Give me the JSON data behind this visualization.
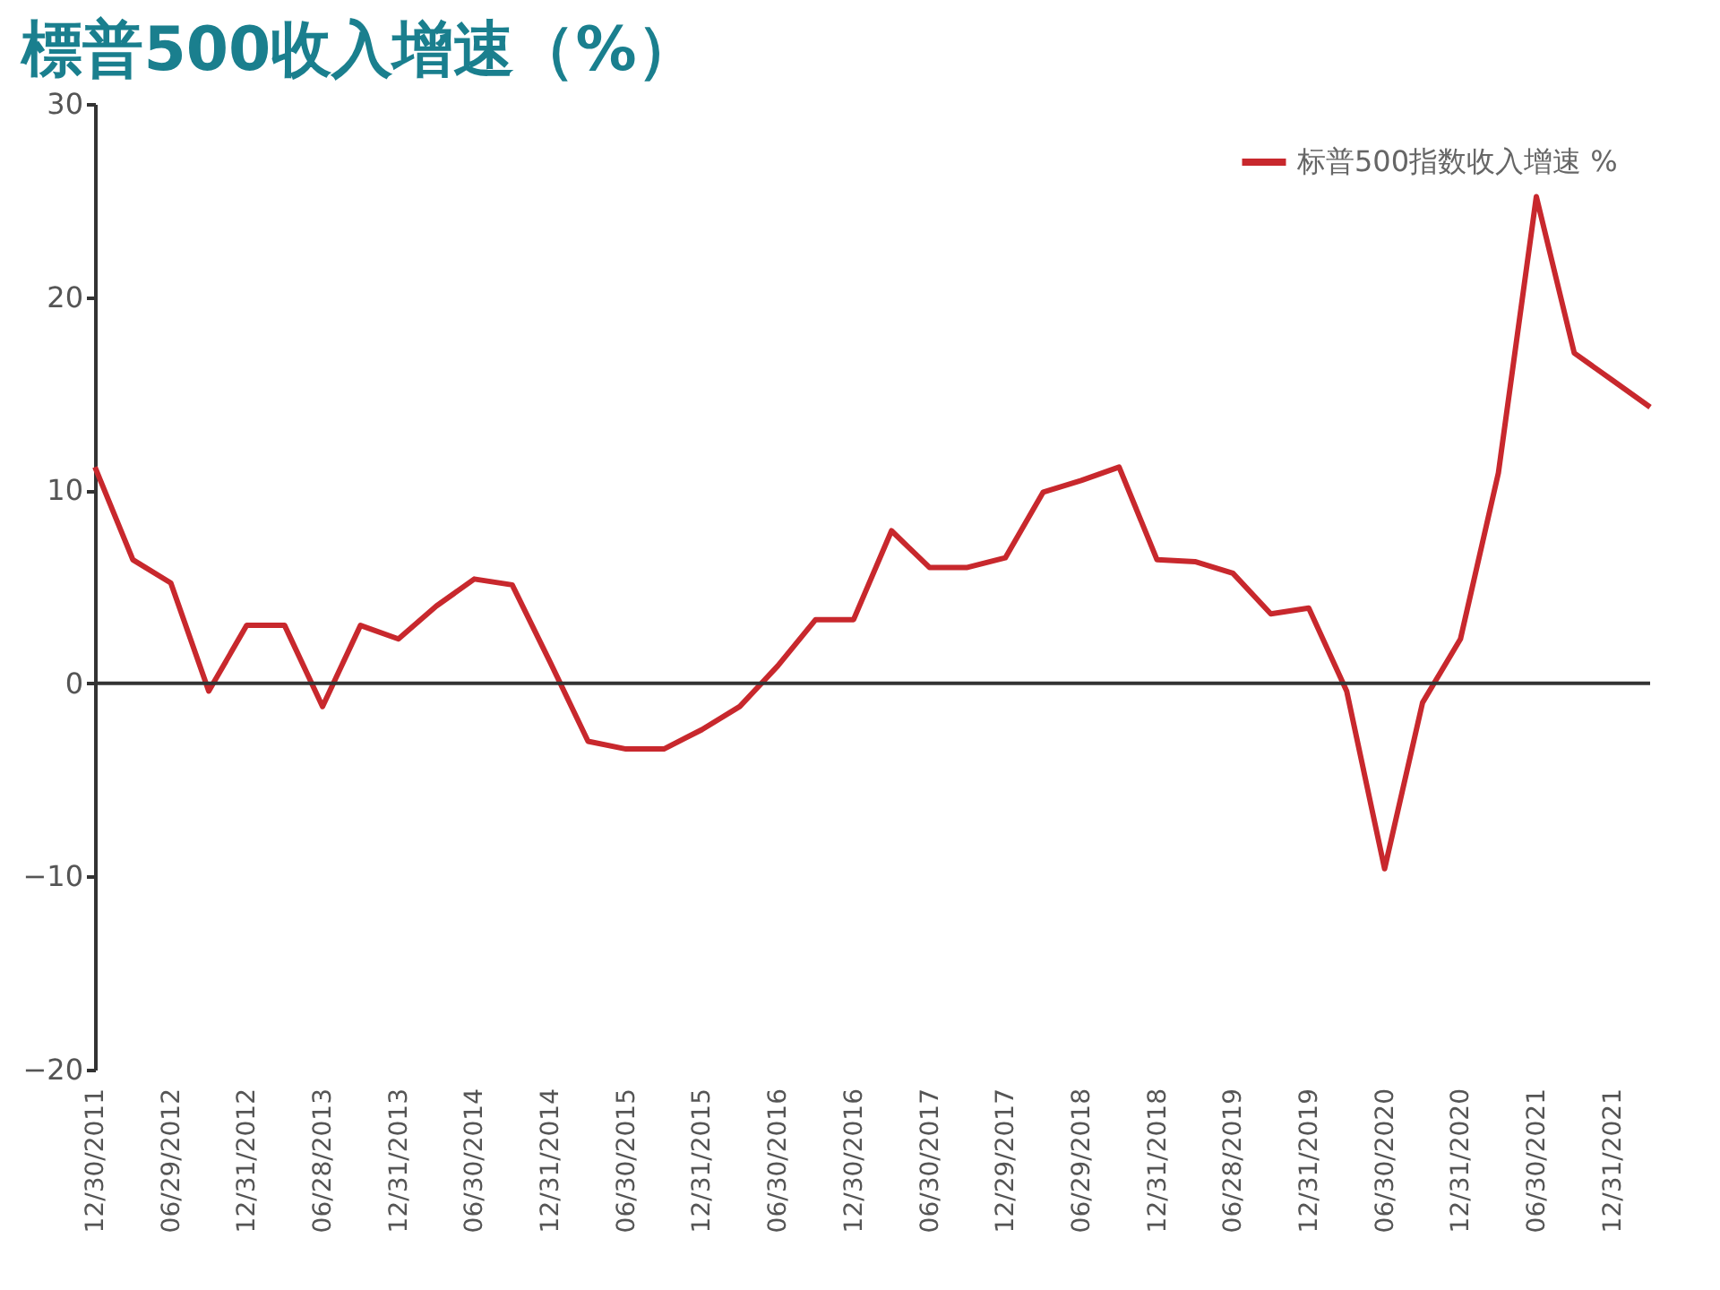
{
  "chart_data": {
    "type": "line",
    "title": "標普500收入增速（%）",
    "categories": [
      "12/30/2011",
      null,
      "06/29/2012",
      null,
      "12/31/2012",
      null,
      "06/28/2013",
      null,
      "12/31/2013",
      null,
      "06/30/2014",
      null,
      "12/31/2014",
      null,
      "06/30/2015",
      null,
      "12/31/2015",
      null,
      "06/30/2016",
      null,
      "12/30/2016",
      null,
      "06/30/2017",
      null,
      "12/29/2017",
      null,
      "06/29/2018",
      null,
      "12/31/2018",
      null,
      "06/28/2019",
      null,
      "12/31/2019",
      null,
      "06/30/2020",
      null,
      "12/31/2020",
      null,
      "06/30/2021",
      null,
      "12/31/2021",
      null
    ],
    "series": [
      {
        "name": "标普500指数收入增速 %",
        "color": "#c8282d",
        "values": [
          11.2,
          6.4,
          5.2,
          -0.4,
          3.0,
          3.0,
          -1.2,
          3.0,
          2.3,
          4.0,
          5.4,
          5.1,
          1.1,
          -3.0,
          -3.4,
          -3.4,
          -2.4,
          -1.2,
          0.9,
          3.3,
          3.3,
          7.9,
          6.0,
          6.0,
          6.5,
          9.9,
          10.5,
          11.2,
          6.4,
          6.3,
          5.7,
          3.6,
          3.9,
          -0.4,
          -9.6,
          -1.0,
          2.3,
          10.9,
          25.2,
          17.1,
          15.7,
          14.3
        ]
      }
    ],
    "ylim": [
      -20,
      30
    ],
    "yticks": [
      -20,
      -10,
      0,
      10,
      20,
      30
    ],
    "ref_lines": [
      {
        "axis": "y",
        "value": 0,
        "color": "#333333"
      }
    ],
    "grid": false,
    "legend": "top right",
    "marker": "none",
    "line_style": "solid"
  }
}
